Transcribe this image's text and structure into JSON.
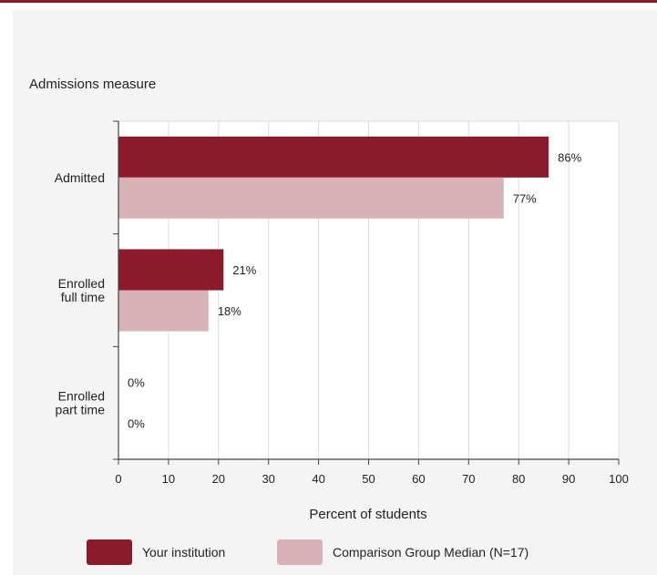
{
  "chart_data": {
    "type": "bar",
    "orientation": "horizontal",
    "title": "Admissions measure",
    "xlabel": "Percent of students",
    "ylabel": "",
    "xlim": [
      0,
      100
    ],
    "xticks": [
      "0",
      "10",
      "20",
      "30",
      "40",
      "50",
      "60",
      "70",
      "80",
      "90",
      "100"
    ],
    "grid": true,
    "legend_position": "bottom",
    "categories": [
      [
        "Admitted"
      ],
      [
        "Enrolled",
        "full time"
      ],
      [
        "Enrolled",
        "part time"
      ]
    ],
    "series": [
      {
        "name": "Your institution",
        "color": "#8b1a2b",
        "values": [
          86,
          21,
          0
        ],
        "labels": [
          "86%",
          "21%",
          "0%"
        ]
      },
      {
        "name": "Comparison Group Median (N=17)",
        "color": "#d9b2b8",
        "values": [
          77,
          18,
          0
        ],
        "labels": [
          "77%",
          "18%",
          "0%"
        ]
      }
    ]
  }
}
